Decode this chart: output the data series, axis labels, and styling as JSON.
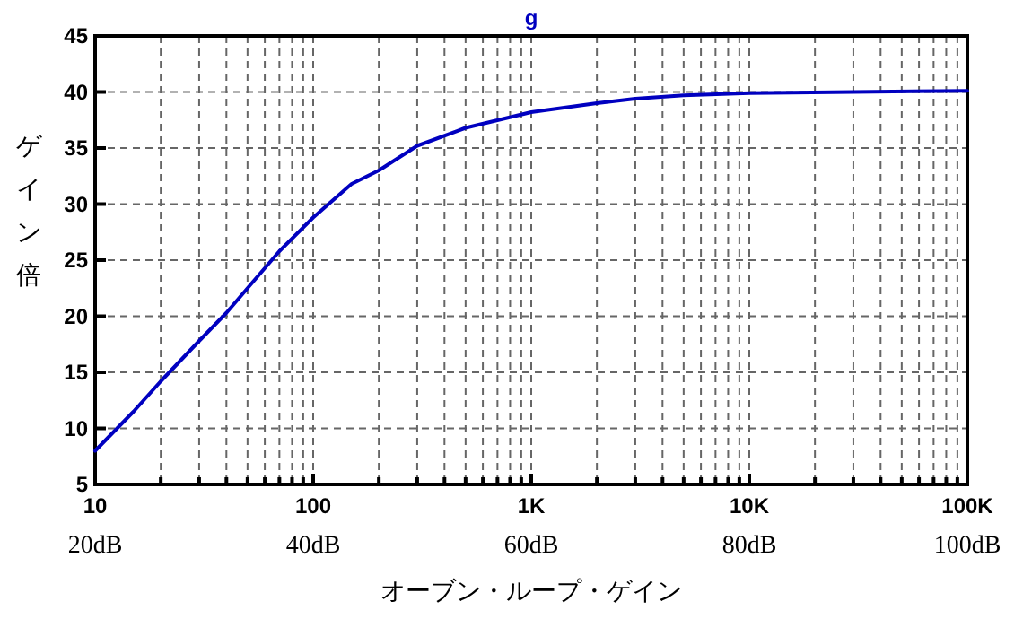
{
  "chart_data": {
    "type": "line",
    "xlabel": "オーブン・ループ・ゲイン",
    "ylabel": "ゲイン倍",
    "log": "x",
    "grid": true,
    "legend": "top",
    "marker": "none",
    "line_style": "solid",
    "xlim": [
      10,
      100000
    ],
    "xticks": [
      10,
      100,
      {
        "value": 1000,
        "label": "1K"
      },
      {
        "value": 10000,
        "label": "10K"
      },
      {
        "value": 100000,
        "label": "100K"
      }
    ],
    "x2lim": [
      20,
      100
    ],
    "x2ticks": [
      {
        "value": 20,
        "label": "20dB"
      },
      {
        "value": 40,
        "label": "40dB"
      },
      {
        "value": 60,
        "label": "60dB"
      },
      {
        "value": 80,
        "label": "80dB"
      },
      {
        "value": 100,
        "label": "100dB"
      }
    ],
    "ylim": [
      5,
      45
    ],
    "yticks": [
      5,
      10,
      15,
      20,
      25,
      30,
      35,
      40,
      45
    ],
    "series": [
      {
        "name": "g",
        "color": "#0000c0",
        "x": [
          10,
          15,
          20,
          30,
          40,
          50,
          70,
          100,
          150,
          200,
          300,
          500,
          1000,
          2000,
          3000,
          5000,
          10000,
          30000,
          100000
        ],
        "values": [
          8.0,
          11.5,
          14.2,
          17.8,
          20.3,
          22.5,
          25.8,
          28.8,
          31.8,
          33.0,
          35.2,
          36.8,
          38.2,
          39.0,
          39.4,
          39.7,
          39.9,
          40.0,
          40.1
        ]
      }
    ]
  }
}
